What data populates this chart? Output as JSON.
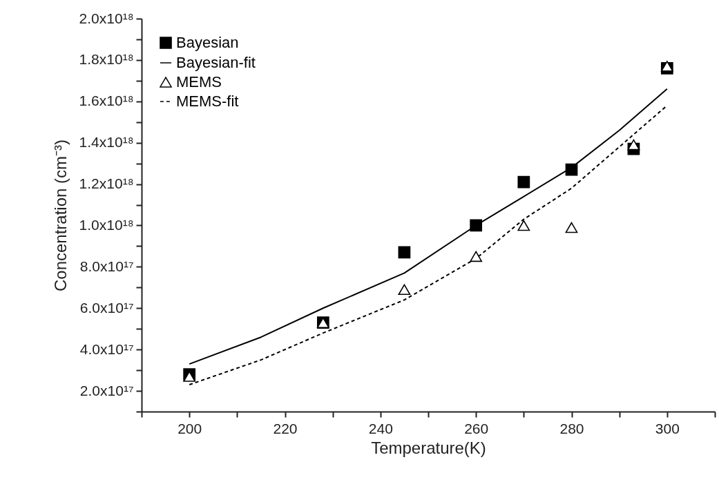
{
  "chart_data": {
    "type": "scatter",
    "xlabel": "Temperature(K)",
    "ylabel": "Concentration (cm⁻³)",
    "xlim": [
      190,
      310
    ],
    "xticks": [
      {
        "value": 190,
        "label": null
      },
      200,
      {
        "value": 210,
        "label": null
      },
      220,
      {
        "value": 230,
        "label": null
      },
      240,
      {
        "value": 250,
        "label": null
      },
      260,
      {
        "value": 270,
        "label": null
      },
      280,
      {
        "value": 290,
        "label": null
      },
      300,
      {
        "value": 310,
        "label": null
      }
    ],
    "ylim": [
      1e+17,
      2e+18
    ],
    "yticks": [
      {
        "value": 1e+17,
        "label": null
      },
      {
        "value": 2e+17,
        "label": "2.0x10¹⁷"
      },
      {
        "value": 3e+17,
        "label": null
      },
      {
        "value": 4e+17,
        "label": "4.0x10¹⁷"
      },
      {
        "value": 5e+17,
        "label": null
      },
      {
        "value": 6e+17,
        "label": "6.0x10¹⁷"
      },
      {
        "value": 7e+17,
        "label": null
      },
      {
        "value": 8e+17,
        "label": "8.0x10¹⁷"
      },
      {
        "value": 9e+17,
        "label": null
      },
      {
        "value": 1e+18,
        "label": "1.0x10¹⁸"
      },
      {
        "value": 1.1e+18,
        "label": null
      },
      {
        "value": 1.2e+18,
        "label": "1.2x10¹⁸"
      },
      {
        "value": 1.3e+18,
        "label": null
      },
      {
        "value": 1.4e+18,
        "label": "1.4x10¹⁸"
      },
      {
        "value": 1.5e+18,
        "label": null
      },
      {
        "value": 1.6e+18,
        "label": "1.6x10¹⁸"
      },
      {
        "value": 1.7e+18,
        "label": null
      },
      {
        "value": 1.8e+18,
        "label": "1.8x10¹⁸"
      },
      {
        "value": 1.9e+18,
        "label": null
      },
      {
        "value": 2e+18,
        "label": "2.0x10¹⁸"
      }
    ],
    "grid": false,
    "legend": "top left",
    "series": [
      {
        "name": "Bayesian",
        "marker": "square",
        "color": "#000000",
        "x": [
          200,
          228,
          245,
          260,
          270,
          280,
          293,
          300
        ],
        "values": [
          2.8e+17,
          5.3e+17,
          8.7e+17,
          1e+18,
          1.21e+18,
          1.27e+18,
          1.37e+18,
          1.76e+18
        ]
      },
      {
        "name": "Bayesian-fit",
        "type": "line",
        "line_style": "solid",
        "color": "#000000",
        "x": [
          200,
          215,
          228,
          245,
          260,
          270,
          280,
          290,
          300
        ],
        "values": [
          3.3e+17,
          4.6e+17,
          6e+17,
          7.7e+17,
          1e+18,
          1.14e+18,
          1.28e+18,
          1.46e+18,
          1.66e+18
        ]
      },
      {
        "name": "MEMS",
        "marker": "triangle",
        "color": "#000000",
        "x": [
          200,
          228,
          245,
          260,
          270,
          280,
          293,
          300
        ],
        "values": [
          2.7e+17,
          5.3e+17,
          6.9e+17,
          8.5e+17,
          1e+18,
          9.9e+17,
          1.39e+18,
          1.77e+18
        ]
      },
      {
        "name": "MEMS-fit",
        "type": "line",
        "line_style": "dashed",
        "color": "#000000",
        "x": [
          200,
          215,
          228,
          245,
          260,
          270,
          280,
          290,
          300
        ],
        "values": [
          2.3e+17,
          3.5e+17,
          4.8e+17,
          6.4e+17,
          8.4e+17,
          1.03e+18,
          1.18e+18,
          1.38e+18,
          1.58e+18
        ]
      }
    ]
  }
}
